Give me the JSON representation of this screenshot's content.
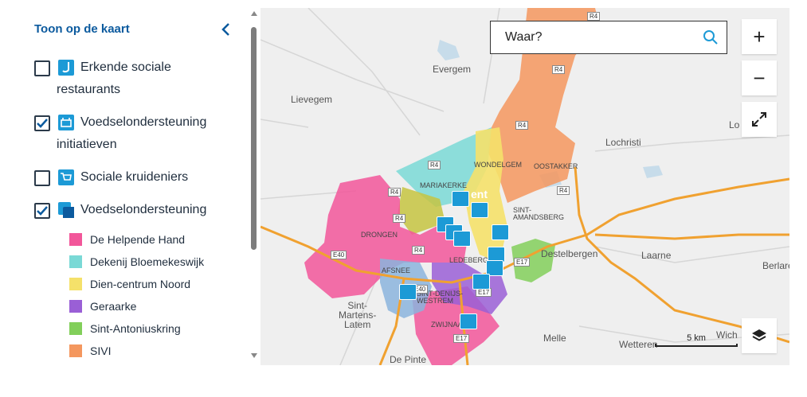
{
  "sidebar": {
    "title": "Toon op de kaart",
    "layers": [
      {
        "label": "Erkende sociale restaurants",
        "checked": false,
        "icon": "restaurant-icon"
      },
      {
        "label": "Voedselondersteuning initiatieven",
        "checked": true,
        "icon": "food-basket-icon"
      },
      {
        "label": "Sociale kruideniers",
        "checked": false,
        "icon": "shopping-cart-icon"
      },
      {
        "label": "Voedselondersteuning",
        "checked": true,
        "icon": "polygon-layer-icon"
      }
    ],
    "legend": [
      {
        "label": "De Helpende Hand",
        "color": "#f2569a"
      },
      {
        "label": "Dekenij Bloemekeswijk",
        "color": "#7ad9d6"
      },
      {
        "label": "Dien-centrum Noord",
        "color": "#f5e16a"
      },
      {
        "label": "Geraarke",
        "color": "#9a5fd6"
      },
      {
        "label": "Sint-Antoniuskring",
        "color": "#82cf5a"
      },
      {
        "label": "SIVI",
        "color": "#f4975e"
      }
    ]
  },
  "map": {
    "search_placeholder": "Waar?",
    "zoom_in": "+",
    "zoom_out": "−",
    "scale_label": "5 km",
    "places": {
      "evergem": "Evergem",
      "lievegem": "Lievegem",
      "lochristi": "Lochristi",
      "lo": "Lo",
      "destelbergen": "Destelbergen",
      "laarne": "Laarne",
      "berlare": "Berlare",
      "sint_martens_latem": "Sint-\nMartens-\nLatem",
      "melle": "Melle",
      "wetteren": "Wetteren",
      "wich": "Wich",
      "de_pinte": "De Pinte",
      "drongen": "DRONGEN",
      "mariakerke": "MARIAKERKE",
      "wondelgem": "WONDELGEM",
      "oostakker": "OOSTAKKER",
      "sint_amandsberg": "SINT-\nAMANDSBERG",
      "afsnee": "AFSNEE",
      "sint_denijs_westrem": "SINT-DENIJS-\nWESTREM",
      "zwijnaarde": "ZWIJNAARDE",
      "ledeberg": "LEDEBERG",
      "gent": "ent"
    },
    "roads": [
      "R4",
      "R4",
      "R4",
      "R4",
      "R4",
      "R4",
      "R4",
      "R4",
      "E40",
      "E17",
      "E17",
      "E17",
      "E40"
    ],
    "colors": {
      "background": "#efefef",
      "highway": "#f0a130",
      "water": "#c7dcea"
    }
  }
}
